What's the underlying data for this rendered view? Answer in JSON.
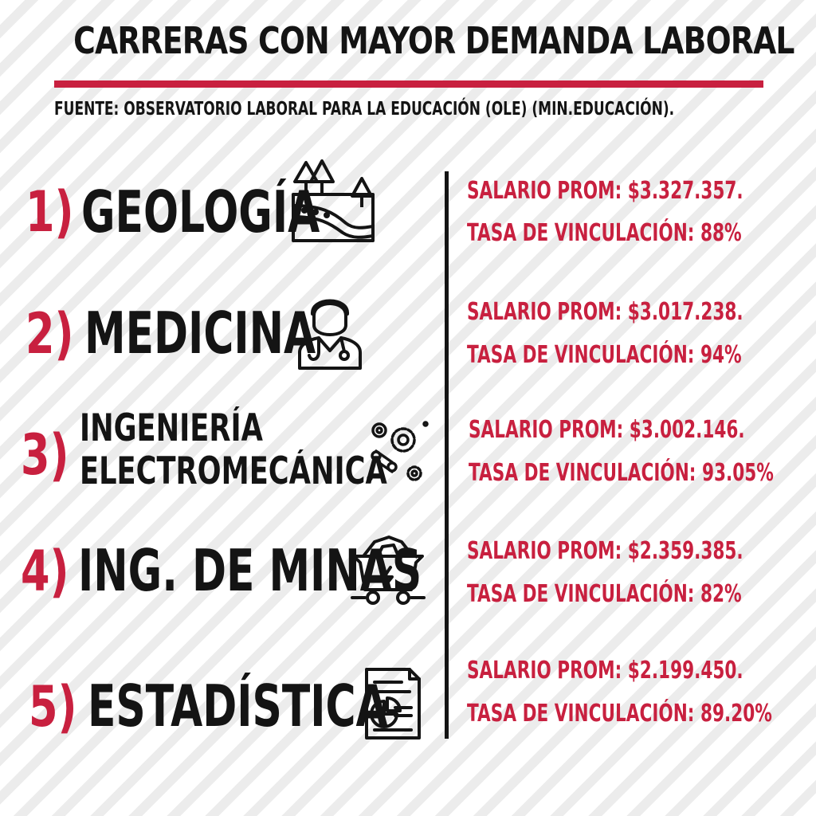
{
  "header": {
    "title": "CARRERAS CON MAYOR DEMANDA LABORAL",
    "source": "FUENTE: OBSERVATORIO LABORAL PARA LA EDUCACIÓN (OLE) (MIN.EDUCACIÓN)."
  },
  "colors": {
    "accent": "#c8203f",
    "text": "#141414",
    "stripe": "#ececec"
  },
  "careers": [
    {
      "number": "1)",
      "name": "GEOLOGÍA",
      "icon": "landscape-layers-icon",
      "salary": "SALARIO PROM: $3.327.357.",
      "rate": "TASA DE VINCULACIÓN: 88%"
    },
    {
      "number": "2)",
      "name": "MEDICINA",
      "icon": "doctor-icon",
      "salary": "SALARIO PROM: $3.017.238.",
      "rate": "TASA DE VINCULACIÓN: 94%"
    },
    {
      "number": "3)",
      "name_line1": "INGENIERÍA",
      "name_line2": "ELECTROMECÁNICA",
      "icon": "gears-icon",
      "salary": "SALARIO PROM: $3.002.146.",
      "rate": "TASA DE VINCULACIÓN: 93.05%"
    },
    {
      "number": "4)",
      "name": "ING. DE MINAS",
      "icon": "mine-cart-icon",
      "salary": "SALARIO PROM: $2.359.385.",
      "rate": "TASA DE VINCULACIÓN: 82%"
    },
    {
      "number": "5)",
      "name": "ESTADÍSTICA",
      "icon": "statistics-report-icon",
      "salary": "SALARIO PROM: $2.199.450.",
      "rate": "TASA DE VINCULACIÓN: 89.20%"
    }
  ]
}
